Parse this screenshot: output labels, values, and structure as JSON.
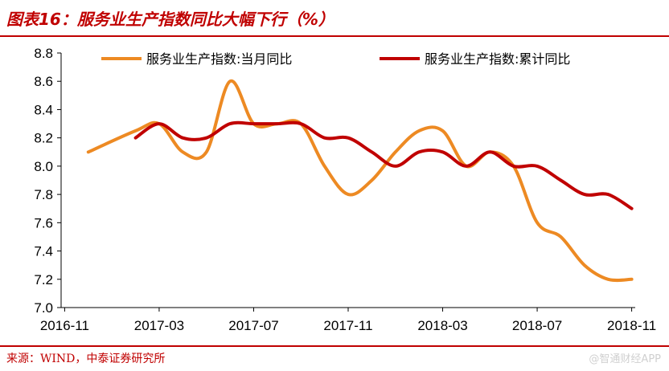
{
  "header": {
    "title": "图表16：服务业生产指数同比大幅下行（%）"
  },
  "footer": {
    "source": "来源：WIND，中泰证券研究所",
    "watermark": "@智通财经APP"
  },
  "colors": {
    "accent": "#c00000",
    "series_monthly": "#ed8a23",
    "series_cumulative": "#c00000"
  },
  "chart_data": {
    "type": "line",
    "title": "图表16：服务业生产指数同比大幅下行（%）",
    "ylim": [
      7.0,
      8.8
    ],
    "yticks": [
      7.0,
      7.2,
      7.4,
      7.6,
      7.8,
      8.0,
      8.2,
      8.4,
      8.6,
      8.8
    ],
    "xticks": [
      "2016-11",
      "2017-03",
      "2017-07",
      "2017-11",
      "2018-03",
      "2018-07",
      "2018-11"
    ],
    "x": [
      "2016-12",
      "2017-01",
      "2017-02",
      "2017-03",
      "2017-04",
      "2017-05",
      "2017-06",
      "2017-07",
      "2017-08",
      "2017-09",
      "2017-10",
      "2017-11",
      "2017-12",
      "2018-01",
      "2018-02",
      "2018-03",
      "2018-04",
      "2018-05",
      "2018-06",
      "2018-07",
      "2018-08",
      "2018-09",
      "2018-10",
      "2018-11"
    ],
    "series": [
      {
        "name": "服务业生产指数:当月同比",
        "color": "#ed8a23",
        "values": [
          8.1,
          null,
          8.25,
          8.3,
          8.1,
          8.1,
          8.6,
          8.3,
          8.3,
          8.3,
          8.0,
          7.8,
          7.9,
          8.1,
          8.25,
          8.25,
          8.0,
          8.1,
          8.0,
          7.6,
          7.5,
          7.3,
          7.2,
          7.2
        ]
      },
      {
        "name": "服务业生产指数:累计同比",
        "color": "#c00000",
        "values": [
          null,
          null,
          8.2,
          8.3,
          8.2,
          8.2,
          8.3,
          8.3,
          8.3,
          8.3,
          8.2,
          8.2,
          8.1,
          8.0,
          8.1,
          8.1,
          8.0,
          8.1,
          8.0,
          8.0,
          7.9,
          7.8,
          7.8,
          7.7
        ]
      }
    ],
    "legend": "top",
    "grid": false
  }
}
